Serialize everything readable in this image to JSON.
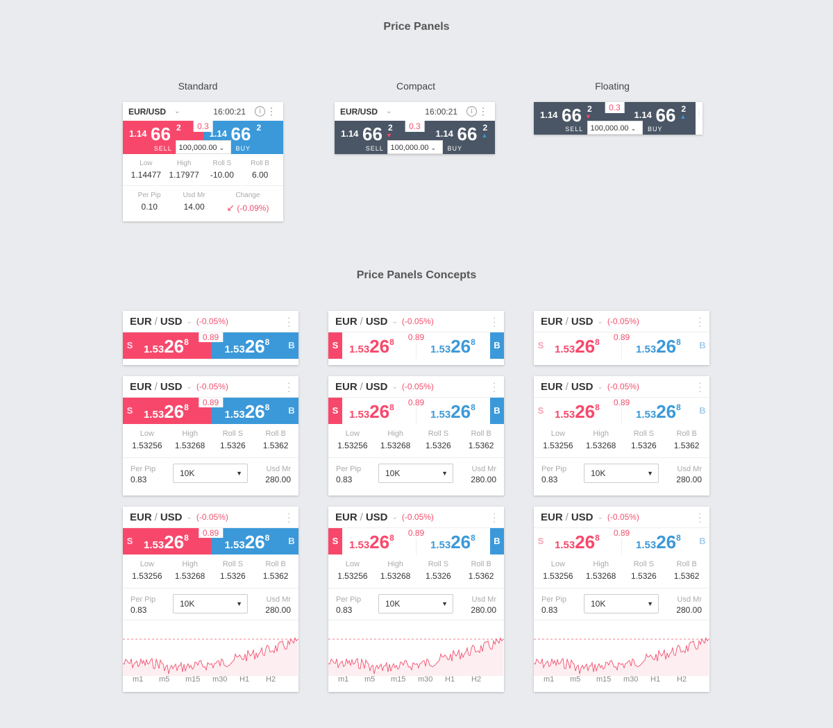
{
  "titles": {
    "main": "Price Panels",
    "concepts": "Price Panels Concepts"
  },
  "variants": [
    "Standard",
    "Compact",
    "Floating"
  ],
  "panel": {
    "pair": "EUR/USD",
    "time": "16:00:21",
    "info": "i",
    "sell_pre": "1.14",
    "sell_big": "66",
    "sell_sup": "2",
    "buy_pre": "1.14",
    "buy_big": "66",
    "buy_sup": "2",
    "spread": "0.3",
    "sell": "SELL",
    "buy": "BUY",
    "qty": "100,000.00",
    "chev": "⌄"
  },
  "standard_stats": {
    "low_k": "Low",
    "low": "1.14477",
    "high_k": "High",
    "high": "1.17977",
    "rs_k": "Roll S",
    "rs": "-10.00",
    "rb_k": "Roll B",
    "rb": "6.00",
    "pp_k": "Per Pip",
    "pp": "0.10",
    "um_k": "Usd Mr",
    "um": "14.00",
    "ch_k": "Change",
    "ch": "(-0.09%)",
    "ch_icon": "↙"
  },
  "concept": {
    "base": "EUR",
    "sep": "/",
    "quote": "USD",
    "chev": "⌄",
    "change": "(-0.05%)",
    "s": "S",
    "b": "B",
    "pre": "1.53",
    "big": "26",
    "sup": "8",
    "spread": "0.89",
    "low_k": "Low",
    "low": "1.53256",
    "high_k": "High",
    "high": "1.53268",
    "rs_k": "Roll S",
    "rs": "1.5326",
    "rb_k": "Roll B",
    "rb": "1.5362",
    "pp_k": "Per Pip",
    "pp": "0.83",
    "um_k": "Usd Mr",
    "um": "280.00",
    "size": "10K",
    "arrow": "▼",
    "timeframes": [
      "m1",
      "m5",
      "m15",
      "m30",
      "H1",
      "H2"
    ]
  },
  "colors": {
    "sell": "#f7486b",
    "buy": "#3b99d9",
    "dark": "#4a5665",
    "line": "#f0506e"
  }
}
